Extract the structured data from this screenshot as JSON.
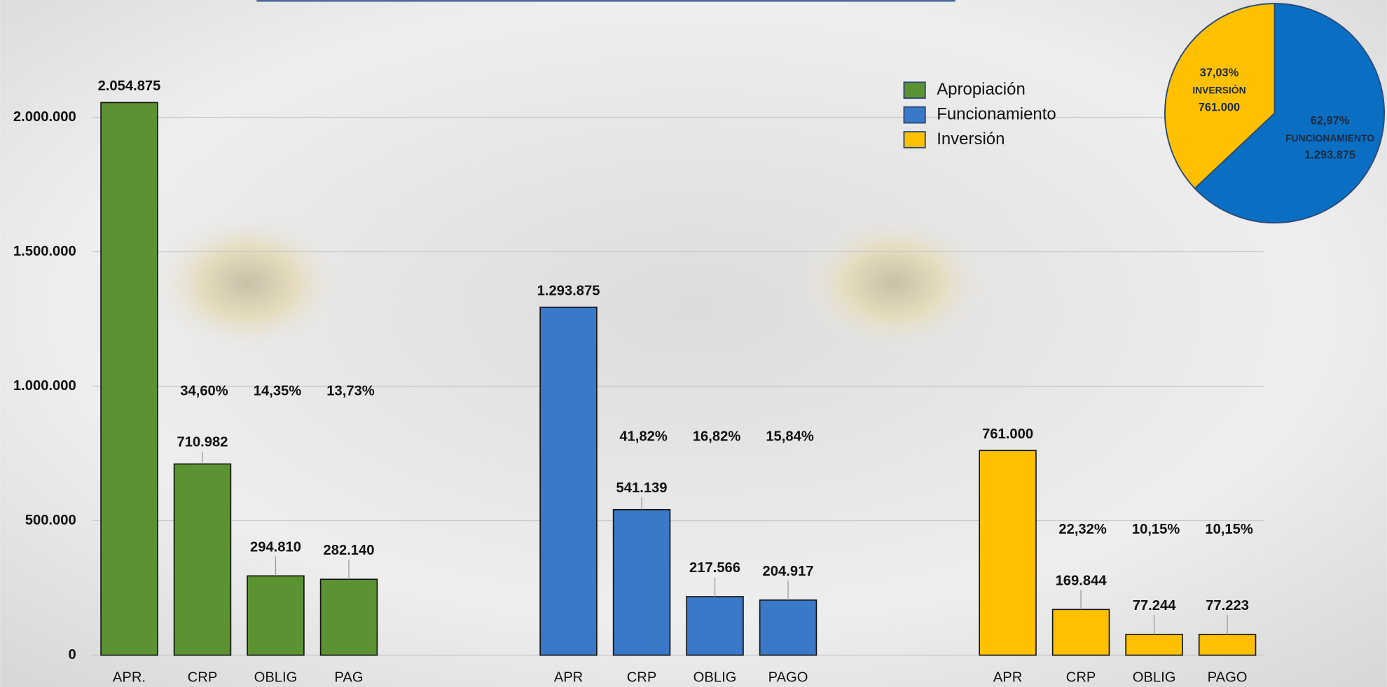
{
  "chart_data": [
    {
      "type": "bar",
      "categories": [
        "APR.",
        "CRP",
        "OBLIG",
        "PAG",
        null,
        null,
        "APR",
        "CRP",
        "OBLIG",
        "PAGO",
        null,
        null,
        "APR",
        "CRP",
        "OBLIG",
        "PAGO"
      ],
      "series": [
        {
          "name": "Apropiación",
          "color": "#5b9332",
          "values": [
            2054875,
            710982,
            294810,
            282140,
            null,
            null,
            null,
            null,
            null,
            null,
            null,
            null,
            null,
            null,
            null,
            null
          ],
          "value_labels": [
            "2.054.875",
            "710.982",
            "294.810",
            "282.140",
            null,
            null,
            null,
            null,
            null,
            null,
            null,
            null,
            null,
            null,
            null,
            null
          ],
          "percents": [
            null,
            34.6,
            14.35,
            13.73,
            null,
            null,
            null,
            null,
            null,
            null,
            null,
            null,
            null,
            null,
            null,
            null
          ],
          "percent_labels": [
            null,
            "34,60%",
            "14,35%",
            "13,73%",
            null,
            null,
            null,
            null,
            null,
            null,
            null,
            null,
            null,
            null,
            null,
            null
          ]
        },
        {
          "name": "Funcionamiento",
          "color": "#3a78c8",
          "values": [
            null,
            null,
            null,
            null,
            null,
            null,
            1293875,
            541139,
            217566,
            204917,
            null,
            null,
            null,
            null,
            null,
            null
          ],
          "value_labels": [
            null,
            null,
            null,
            null,
            null,
            null,
            "1.293.875",
            "541.139",
            "217.566",
            "204.917",
            null,
            null,
            null,
            null,
            null,
            null
          ],
          "percents": [
            null,
            null,
            null,
            null,
            null,
            null,
            null,
            41.82,
            16.82,
            15.84,
            null,
            null,
            null,
            null,
            null,
            null
          ],
          "percent_labels": [
            null,
            null,
            null,
            null,
            null,
            null,
            null,
            "41,82%",
            "16,82%",
            "15,84%",
            null,
            null,
            null,
            null,
            null,
            null
          ]
        },
        {
          "name": "Inversión",
          "color": "#ffc000",
          "values": [
            null,
            null,
            null,
            null,
            null,
            null,
            null,
            null,
            null,
            null,
            null,
            null,
            761000,
            169844,
            77244,
            77223
          ],
          "value_labels": [
            null,
            null,
            null,
            null,
            null,
            null,
            null,
            null,
            null,
            null,
            null,
            null,
            "761.000",
            "169.844",
            "77.244",
            "77.223"
          ],
          "percents": [
            null,
            null,
            null,
            null,
            null,
            null,
            null,
            null,
            null,
            null,
            null,
            null,
            null,
            22.32,
            10.15,
            10.15
          ],
          "percent_labels": [
            null,
            null,
            null,
            null,
            null,
            null,
            null,
            null,
            null,
            null,
            null,
            null,
            null,
            "22,32%",
            "10,15%",
            "10,15%"
          ]
        }
      ],
      "ylim": [
        0,
        2400000
      ],
      "yticks": [
        0,
        {
          "value": 500000,
          "label": "500.000"
        },
        {
          "value": 1000000,
          "label": "1.000.000"
        },
        {
          "value": 1500000,
          "label": "1.500.000"
        },
        {
          "value": 2000000,
          "label": "2.000.000"
        }
      ],
      "grid": true,
      "legend": "top-right"
    },
    {
      "type": "pie",
      "categories": [
        "FUNCIONAMIENTO",
        "INVERSIÓN"
      ],
      "values": [
        62.97,
        37.03
      ],
      "value_labels": [
        "62,97%",
        "37,03%"
      ],
      "amounts": [
        1293875,
        761000
      ],
      "amount_labels": [
        "1.293.875",
        "761.000"
      ],
      "colors": [
        "#0a6fc2",
        "#ffc000"
      ]
    }
  ]
}
